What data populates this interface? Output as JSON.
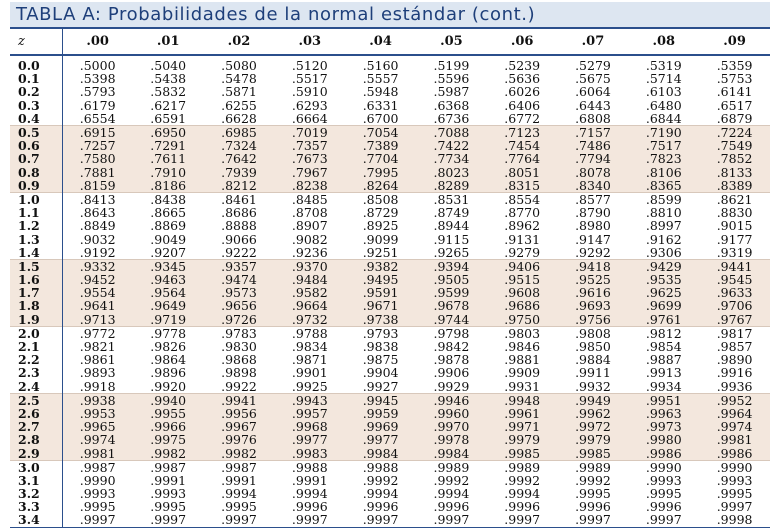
{
  "title": "TABLA A: Probabilidades de la normal estándar (cont.)",
  "colors": {
    "title_bg": "#dde6f1",
    "title_text": "#1e3f7a",
    "rule": "#2b4f8c",
    "band": "#f3e7dd"
  },
  "header": {
    "z_label": "z",
    "columns": [
      ".00",
      ".01",
      ".02",
      ".03",
      ".04",
      ".05",
      ".06",
      ".07",
      ".08",
      ".09"
    ]
  },
  "rows": [
    {
      "z": "0.0",
      "values": [
        ".5000",
        ".5040",
        ".5080",
        ".5120",
        ".5160",
        ".5199",
        ".5239",
        ".5279",
        ".5319",
        ".5359"
      ]
    },
    {
      "z": "0.1",
      "values": [
        ".5398",
        ".5438",
        ".5478",
        ".5517",
        ".5557",
        ".5596",
        ".5636",
        ".5675",
        ".5714",
        ".5753"
      ]
    },
    {
      "z": "0.2",
      "values": [
        ".5793",
        ".5832",
        ".5871",
        ".5910",
        ".5948",
        ".5987",
        ".6026",
        ".6064",
        ".6103",
        ".6141"
      ]
    },
    {
      "z": "0.3",
      "values": [
        ".6179",
        ".6217",
        ".6255",
        ".6293",
        ".6331",
        ".6368",
        ".6406",
        ".6443",
        ".6480",
        ".6517"
      ]
    },
    {
      "z": "0.4",
      "values": [
        ".6554",
        ".6591",
        ".6628",
        ".6664",
        ".6700",
        ".6736",
        ".6772",
        ".6808",
        ".6844",
        ".6879"
      ]
    },
    {
      "z": "0.5",
      "values": [
        ".6915",
        ".6950",
        ".6985",
        ".7019",
        ".7054",
        ".7088",
        ".7123",
        ".7157",
        ".7190",
        ".7224"
      ]
    },
    {
      "z": "0.6",
      "values": [
        ".7257",
        ".7291",
        ".7324",
        ".7357",
        ".7389",
        ".7422",
        ".7454",
        ".7486",
        ".7517",
        ".7549"
      ]
    },
    {
      "z": "0.7",
      "values": [
        ".7580",
        ".7611",
        ".7642",
        ".7673",
        ".7704",
        ".7734",
        ".7764",
        ".7794",
        ".7823",
        ".7852"
      ]
    },
    {
      "z": "0.8",
      "values": [
        ".7881",
        ".7910",
        ".7939",
        ".7967",
        ".7995",
        ".8023",
        ".8051",
        ".8078",
        ".8106",
        ".8133"
      ]
    },
    {
      "z": "0.9",
      "values": [
        ".8159",
        ".8186",
        ".8212",
        ".8238",
        ".8264",
        ".8289",
        ".8315",
        ".8340",
        ".8365",
        ".8389"
      ]
    },
    {
      "z": "1.0",
      "values": [
        ".8413",
        ".8438",
        ".8461",
        ".8485",
        ".8508",
        ".8531",
        ".8554",
        ".8577",
        ".8599",
        ".8621"
      ]
    },
    {
      "z": "1.1",
      "values": [
        ".8643",
        ".8665",
        ".8686",
        ".8708",
        ".8729",
        ".8749",
        ".8770",
        ".8790",
        ".8810",
        ".8830"
      ]
    },
    {
      "z": "1.2",
      "values": [
        ".8849",
        ".8869",
        ".8888",
        ".8907",
        ".8925",
        ".8944",
        ".8962",
        ".8980",
        ".8997",
        ".9015"
      ]
    },
    {
      "z": "1.3",
      "values": [
        ".9032",
        ".9049",
        ".9066",
        ".9082",
        ".9099",
        ".9115",
        ".9131",
        ".9147",
        ".9162",
        ".9177"
      ]
    },
    {
      "z": "1.4",
      "values": [
        ".9192",
        ".9207",
        ".9222",
        ".9236",
        ".9251",
        ".9265",
        ".9279",
        ".9292",
        ".9306",
        ".9319"
      ]
    },
    {
      "z": "1.5",
      "values": [
        ".9332",
        ".9345",
        ".9357",
        ".9370",
        ".9382",
        ".9394",
        ".9406",
        ".9418",
        ".9429",
        ".9441"
      ]
    },
    {
      "z": "1.6",
      "values": [
        ".9452",
        ".9463",
        ".9474",
        ".9484",
        ".9495",
        ".9505",
        ".9515",
        ".9525",
        ".9535",
        ".9545"
      ]
    },
    {
      "z": "1.7",
      "values": [
        ".9554",
        ".9564",
        ".9573",
        ".9582",
        ".9591",
        ".9599",
        ".9608",
        ".9616",
        ".9625",
        ".9633"
      ]
    },
    {
      "z": "1.8",
      "values": [
        ".9641",
        ".9649",
        ".9656",
        ".9664",
        ".9671",
        ".9678",
        ".9686",
        ".9693",
        ".9699",
        ".9706"
      ]
    },
    {
      "z": "1.9",
      "values": [
        ".9713",
        ".9719",
        ".9726",
        ".9732",
        ".9738",
        ".9744",
        ".9750",
        ".9756",
        ".9761",
        ".9767"
      ]
    },
    {
      "z": "2.0",
      "values": [
        ".9772",
        ".9778",
        ".9783",
        ".9788",
        ".9793",
        ".9798",
        ".9803",
        ".9808",
        ".9812",
        ".9817"
      ]
    },
    {
      "z": "2.1",
      "values": [
        ".9821",
        ".9826",
        ".9830",
        ".9834",
        ".9838",
        ".9842",
        ".9846",
        ".9850",
        ".9854",
        ".9857"
      ]
    },
    {
      "z": "2.2",
      "values": [
        ".9861",
        ".9864",
        ".9868",
        ".9871",
        ".9875",
        ".9878",
        ".9881",
        ".9884",
        ".9887",
        ".9890"
      ]
    },
    {
      "z": "2.3",
      "values": [
        ".9893",
        ".9896",
        ".9898",
        ".9901",
        ".9904",
        ".9906",
        ".9909",
        ".9911",
        ".9913",
        ".9916"
      ]
    },
    {
      "z": "2.4",
      "values": [
        ".9918",
        ".9920",
        ".9922",
        ".9925",
        ".9927",
        ".9929",
        ".9931",
        ".9932",
        ".9934",
        ".9936"
      ]
    },
    {
      "z": "2.5",
      "values": [
        ".9938",
        ".9940",
        ".9941",
        ".9943",
        ".9945",
        ".9946",
        ".9948",
        ".9949",
        ".9951",
        ".9952"
      ]
    },
    {
      "z": "2.6",
      "values": [
        ".9953",
        ".9955",
        ".9956",
        ".9957",
        ".9959",
        ".9960",
        ".9961",
        ".9962",
        ".9963",
        ".9964"
      ]
    },
    {
      "z": "2.7",
      "values": [
        ".9965",
        ".9966",
        ".9967",
        ".9968",
        ".9969",
        ".9970",
        ".9971",
        ".9972",
        ".9973",
        ".9974"
      ]
    },
    {
      "z": "2.8",
      "values": [
        ".9974",
        ".9975",
        ".9976",
        ".9977",
        ".9977",
        ".9978",
        ".9979",
        ".9979",
        ".9980",
        ".9981"
      ]
    },
    {
      "z": "2.9",
      "values": [
        ".9981",
        ".9982",
        ".9982",
        ".9983",
        ".9984",
        ".9984",
        ".9985",
        ".9985",
        ".9986",
        ".9986"
      ]
    },
    {
      "z": "3.0",
      "values": [
        ".9987",
        ".9987",
        ".9987",
        ".9988",
        ".9988",
        ".9989",
        ".9989",
        ".9989",
        ".9990",
        ".9990"
      ]
    },
    {
      "z": "3.1",
      "values": [
        ".9990",
        ".9991",
        ".9991",
        ".9991",
        ".9992",
        ".9992",
        ".9992",
        ".9992",
        ".9993",
        ".9993"
      ]
    },
    {
      "z": "3.2",
      "values": [
        ".9993",
        ".9993",
        ".9994",
        ".9994",
        ".9994",
        ".9994",
        ".9994",
        ".9995",
        ".9995",
        ".9995"
      ]
    },
    {
      "z": "3.3",
      "values": [
        ".9995",
        ".9995",
        ".9995",
        ".9996",
        ".9996",
        ".9996",
        ".9996",
        ".9996",
        ".9996",
        ".9997"
      ]
    },
    {
      "z": "3.4",
      "values": [
        ".9997",
        ".9997",
        ".9997",
        ".9997",
        ".9997",
        ".9997",
        ".9997",
        ".9997",
        ".9997",
        ".9998"
      ]
    }
  ]
}
